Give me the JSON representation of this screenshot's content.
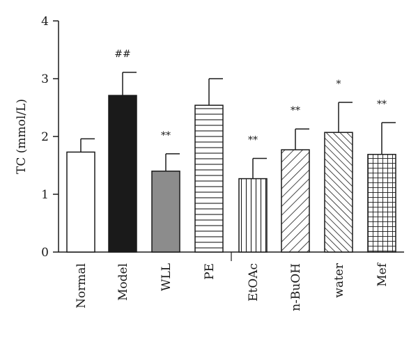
{
  "chart_data": {
    "type": "bar",
    "ylabel": "TC (mmol/L)",
    "ylim": [
      0,
      4
    ],
    "yticks": [
      "0",
      "1",
      "2",
      "3",
      "4"
    ],
    "categories": [
      "Normal",
      "Model",
      "WLL",
      "PE",
      "EtOAc",
      "n-BuOH",
      "water",
      "Mef"
    ],
    "values": [
      1.73,
      2.71,
      1.4,
      2.54,
      1.27,
      1.77,
      2.07,
      1.69
    ],
    "errors": [
      0.23,
      0.4,
      0.3,
      0.46,
      0.35,
      0.36,
      0.52,
      0.55
    ],
    "annotations": [
      "",
      "##",
      "**",
      "",
      "**",
      "**",
      "*",
      "**"
    ],
    "fills": [
      "white",
      "black",
      "gray",
      "horizontal-lines",
      "vertical-lines",
      "diagonal-lines",
      "diagonal-lines-dense",
      "grid"
    ],
    "colors": {
      "bar_stroke": "#1a1a1a",
      "model_fill": "#1a1a1a",
      "wll_fill": "#8c8c8c"
    },
    "grid": false,
    "legend": "none"
  }
}
